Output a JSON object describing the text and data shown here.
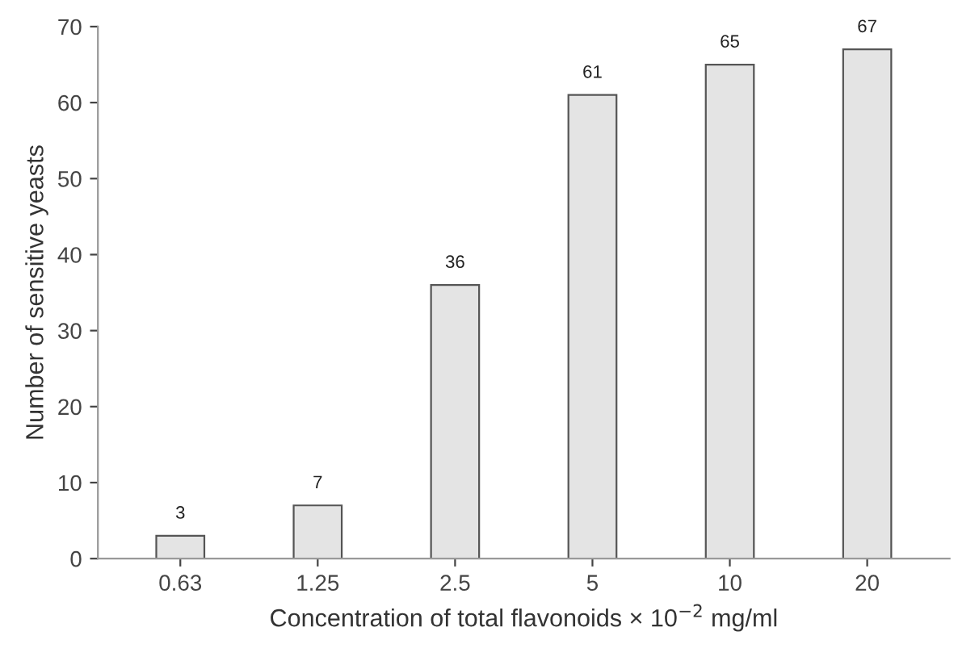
{
  "chart_data": {
    "type": "bar",
    "xlabel": "Concentration of total flavonoids × 10$^{−2}$ mg/ml",
    "ylabel": "Number of sensitive yeasts",
    "categories": [
      "0.63",
      "1.25",
      "2.5",
      "5",
      "10",
      "20"
    ],
    "values": [
      3,
      7,
      36,
      61,
      65,
      67
    ],
    "color": "#e4e4e4",
    "ylim": [
      0,
      70
    ],
    "yticks": [
      0,
      10,
      20,
      30,
      40,
      50,
      60,
      70
    ],
    "grid": false,
    "data_labels": true
  }
}
